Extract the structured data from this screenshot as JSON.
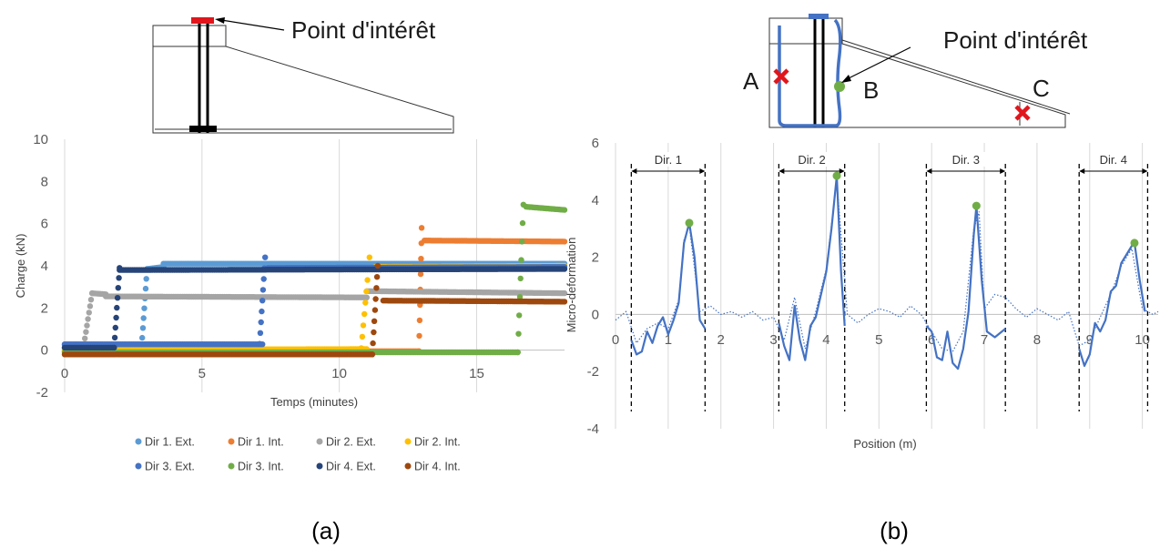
{
  "panel_a": {
    "caption": "(a)",
    "annotation": "Point d'intérêt",
    "chart_data": {
      "type": "scatter",
      "title": "",
      "xlabel": "Temps (minutes)",
      "ylabel": "Charge (kN)",
      "xlim": [
        0,
        18.2
      ],
      "ylim": [
        -2,
        10
      ],
      "xticks": [
        "0",
        "5",
        "10",
        "15"
      ],
      "yticks": [
        "-2",
        "0",
        "2",
        "4",
        "6",
        "8",
        "10"
      ],
      "grid": "vertical",
      "legend": "bottom",
      "series": [
        {
          "name": "Dir 1. Ext.",
          "color": "#5B9BD5",
          "segments": [
            [
              0,
              0.12,
              2.8,
              0.12
            ],
            [
              3.0,
              3.85,
              3.6,
              3.95
            ],
            [
              3.6,
              4.1,
              18.2,
              4.1
            ]
          ],
          "steps": [
            [
              2.8,
              3.0,
              0.12,
              3.85
            ]
          ]
        },
        {
          "name": "Dir 1. Int.",
          "color": "#ED7D31",
          "segments": [
            [
              0,
              -0.05,
              12.9,
              -0.05
            ],
            [
              13.1,
              5.2,
              18.2,
              5.15
            ]
          ],
          "steps": [
            [
              12.9,
              13.0,
              -0.05,
              5.8
            ]
          ]
        },
        {
          "name": "Dir 2. Ext.",
          "color": "#A5A5A5",
          "segments": [
            [
              0,
              0.25,
              0.7,
              0.25
            ],
            [
              1.0,
              2.7,
              1.5,
              2.65
            ],
            [
              1.5,
              2.55,
              11.0,
              2.5
            ],
            [
              11.0,
              2.8,
              18.2,
              2.7
            ]
          ],
          "steps": [
            [
              0.7,
              1.0,
              0.25,
              2.7
            ]
          ]
        },
        {
          "name": "Dir 2. Int.",
          "color": "#FFC000",
          "segments": [
            [
              0,
              0.02,
              11.0,
              0.05
            ],
            [
              11.3,
              3.95,
              18.2,
              4.0
            ]
          ],
          "steps": [
            [
              10.8,
              11.1,
              0.1,
              4.4
            ]
          ]
        },
        {
          "name": "Dir 3. Ext.",
          "color": "#4472C4",
          "segments": [
            [
              0,
              0.28,
              7.2,
              0.28
            ],
            [
              7.4,
              3.9,
              18.2,
              3.95
            ]
          ],
          "steps": [
            [
              7.1,
              7.3,
              0.3,
              4.4
            ]
          ]
        },
        {
          "name": "Dir 3. Int.",
          "color": "#70AD47",
          "segments": [
            [
              0,
              -0.1,
              16.5,
              -0.1
            ],
            [
              16.8,
              6.8,
              18.2,
              6.65
            ]
          ],
          "steps": [
            [
              16.5,
              16.7,
              -0.1,
              6.9
            ]
          ]
        },
        {
          "name": "Dir 4. Ext.",
          "color": "#264478",
          "segments": [
            [
              0,
              0.12,
              1.8,
              0.12
            ],
            [
              2.0,
              3.8,
              18.2,
              3.85
            ]
          ],
          "steps": [
            [
              1.8,
              2.0,
              0.12,
              3.9
            ]
          ]
        },
        {
          "name": "Dir 4. Int.",
          "color": "#9E480E",
          "segments": [
            [
              0,
              -0.2,
              11.2,
              -0.2
            ],
            [
              11.6,
              2.35,
              18.2,
              2.3
            ]
          ],
          "steps": [
            [
              11.2,
              11.4,
              -0.2,
              4.0
            ]
          ]
        }
      ]
    }
  },
  "panel_b": {
    "caption": "(b)",
    "annotation": "Point d'intérêt",
    "labels": {
      "a": "A",
      "b": "B",
      "c": "C"
    },
    "chart_data": {
      "type": "line",
      "title": "",
      "xlabel": "Position (m)",
      "ylabel": "Micro-deformation",
      "xlim": [
        0,
        10.3
      ],
      "ylim": [
        -4,
        6
      ],
      "xticks": [
        "0",
        "1",
        "2",
        "3",
        "4",
        "5",
        "6",
        "7",
        "8",
        "9",
        "10"
      ],
      "yticks": [
        "-4",
        "-2",
        "0",
        "2",
        "4",
        "6"
      ],
      "grid": "vertical",
      "legend": "none",
      "direction_bands": [
        {
          "label": "Dir. 1",
          "x0": 0.3,
          "x1": 1.7
        },
        {
          "label": "Dir. 2",
          "x0": 3.1,
          "x1": 4.35
        },
        {
          "label": "Dir. 3",
          "x0": 5.9,
          "x1": 7.4
        },
        {
          "label": "Dir. 4",
          "x0": 8.8,
          "x1": 10.1
        }
      ],
      "peaks": [
        [
          1.4,
          3.2
        ],
        [
          4.2,
          4.85
        ],
        [
          6.85,
          3.8
        ],
        [
          9.85,
          2.5
        ]
      ],
      "main_series": [
        [
          [
            0.3,
            -0.9
          ],
          [
            0.4,
            -1.4
          ],
          [
            0.5,
            -1.3
          ],
          [
            0.6,
            -0.6
          ],
          [
            0.7,
            -1.0
          ],
          [
            0.8,
            -0.4
          ],
          [
            0.9,
            -0.1
          ],
          [
            1.0,
            -0.7
          ],
          [
            1.1,
            -0.2
          ],
          [
            1.2,
            0.4
          ],
          [
            1.3,
            2.5
          ],
          [
            1.4,
            3.2
          ],
          [
            1.5,
            2.0
          ],
          [
            1.6,
            -0.2
          ],
          [
            1.7,
            -0.5
          ]
        ],
        [
          [
            3.1,
            -0.3
          ],
          [
            3.2,
            -1.1
          ],
          [
            3.3,
            -1.6
          ],
          [
            3.4,
            0.3
          ],
          [
            3.5,
            -0.9
          ],
          [
            3.6,
            -1.6
          ],
          [
            3.7,
            -0.4
          ],
          [
            3.8,
            -0.1
          ],
          [
            3.9,
            0.7
          ],
          [
            4.0,
            1.5
          ],
          [
            4.1,
            3.0
          ],
          [
            4.2,
            4.85
          ],
          [
            4.28,
            1.5
          ],
          [
            4.35,
            -0.4
          ]
        ],
        [
          [
            5.9,
            -0.4
          ],
          [
            6.0,
            -0.6
          ],
          [
            6.1,
            -1.5
          ],
          [
            6.2,
            -1.6
          ],
          [
            6.3,
            -0.6
          ],
          [
            6.4,
            -1.7
          ],
          [
            6.5,
            -1.9
          ],
          [
            6.6,
            -1.2
          ],
          [
            6.7,
            0.1
          ],
          [
            6.8,
            2.8
          ],
          [
            6.85,
            3.8
          ],
          [
            6.95,
            1.2
          ],
          [
            7.05,
            -0.6
          ],
          [
            7.2,
            -0.8
          ],
          [
            7.4,
            -0.5
          ]
        ],
        [
          [
            8.8,
            -1.2
          ],
          [
            8.9,
            -1.8
          ],
          [
            9.0,
            -1.4
          ],
          [
            9.1,
            -0.3
          ],
          [
            9.2,
            -0.6
          ],
          [
            9.3,
            -0.2
          ],
          [
            9.4,
            0.8
          ],
          [
            9.5,
            1.0
          ],
          [
            9.6,
            1.8
          ],
          [
            9.7,
            2.1
          ],
          [
            9.8,
            2.4
          ],
          [
            9.85,
            2.5
          ],
          [
            9.95,
            1.2
          ],
          [
            10.05,
            0.1
          ]
        ]
      ],
      "dotted_series": [
        [
          0.0,
          -0.2
        ],
        [
          0.2,
          0.1
        ],
        [
          0.4,
          -1.0
        ],
        [
          0.6,
          -0.5
        ],
        [
          0.8,
          -0.3
        ],
        [
          1.0,
          -0.5
        ],
        [
          1.2,
          0.5
        ],
        [
          1.3,
          2.6
        ],
        [
          1.4,
          3.1
        ],
        [
          1.6,
          0.1
        ],
        [
          1.8,
          0.3
        ],
        [
          2.0,
          0.0
        ],
        [
          2.2,
          0.1
        ],
        [
          2.4,
          -0.1
        ],
        [
          2.6,
          0.1
        ],
        [
          2.8,
          -0.2
        ],
        [
          3.0,
          -0.1
        ],
        [
          3.2,
          -0.9
        ],
        [
          3.4,
          0.6
        ],
        [
          3.6,
          -1.2
        ],
        [
          3.8,
          0.1
        ],
        [
          4.0,
          1.6
        ],
        [
          4.2,
          4.7
        ],
        [
          4.4,
          0.0
        ],
        [
          4.6,
          -0.3
        ],
        [
          4.8,
          0.0
        ],
        [
          5.0,
          0.2
        ],
        [
          5.2,
          0.1
        ],
        [
          5.4,
          -0.1
        ],
        [
          5.6,
          0.3
        ],
        [
          5.8,
          0.0
        ],
        [
          6.0,
          -0.6
        ],
        [
          6.2,
          -1.2
        ],
        [
          6.4,
          -1.3
        ],
        [
          6.6,
          -0.6
        ],
        [
          6.8,
          3.0
        ],
        [
          6.9,
          3.6
        ],
        [
          7.0,
          0.2
        ],
        [
          7.2,
          0.7
        ],
        [
          7.4,
          0.6
        ],
        [
          7.6,
          0.2
        ],
        [
          7.8,
          -0.1
        ],
        [
          8.0,
          0.2
        ],
        [
          8.2,
          0.0
        ],
        [
          8.4,
          -0.2
        ],
        [
          8.6,
          0.1
        ],
        [
          8.8,
          -1.1
        ],
        [
          9.0,
          -0.9
        ],
        [
          9.2,
          -0.1
        ],
        [
          9.4,
          0.7
        ],
        [
          9.6,
          1.7
        ],
        [
          9.8,
          2.3
        ],
        [
          10.0,
          0.2
        ],
        [
          10.2,
          0.0
        ],
        [
          10.3,
          0.1
        ]
      ]
    }
  }
}
